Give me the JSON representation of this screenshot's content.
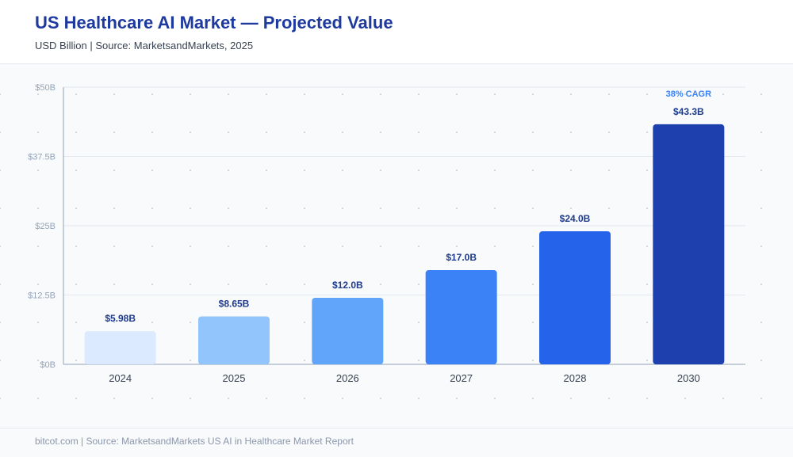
{
  "header": {
    "title": "US Healthcare AI Market — Projected Value",
    "subtitle": "USD Billion  |  Source: MarketsandMarkets, 2025"
  },
  "footer": {
    "text": "bitcot.com  |  Source: MarketsandMarkets US AI in Healthcare Market Report"
  },
  "chart_data": {
    "type": "bar",
    "title": "US Healthcare AI Market — Projected Value",
    "ylabel": "",
    "xlabel": "",
    "categories": [
      "2024",
      "2025",
      "2026",
      "2027",
      "2028",
      "2030"
    ],
    "values": [
      5.98,
      8.65,
      12.0,
      17.0,
      24.0,
      43.3
    ],
    "value_labels": [
      "$5.98B",
      "$8.65B",
      "$12.0B",
      "$17.0B",
      "$24.0B",
      "$43.3B"
    ],
    "bar_colors": [
      "#dbeafe",
      "#93c5fd",
      "#60a5fa",
      "#3b82f6",
      "#2563eb",
      "#1e40af"
    ],
    "ylim": [
      0,
      50
    ],
    "yticks": [
      0,
      12.5,
      25,
      37.5,
      50
    ],
    "ytick_labels": [
      "$0B",
      "$12.5B",
      "$25B",
      "$37.5B",
      "$50B"
    ],
    "annotation": {
      "text": "38% CAGR",
      "category": "2030"
    },
    "grid": true,
    "legend": "none"
  },
  "colors": {
    "title": "#1e3a9e",
    "value_label": "#1e3a8a",
    "annotation": "#3b82f6",
    "gridline": "#e2e8f0",
    "axis": "#94a3b8",
    "tick_label": "#94a3b8",
    "category_label": "#374151"
  }
}
